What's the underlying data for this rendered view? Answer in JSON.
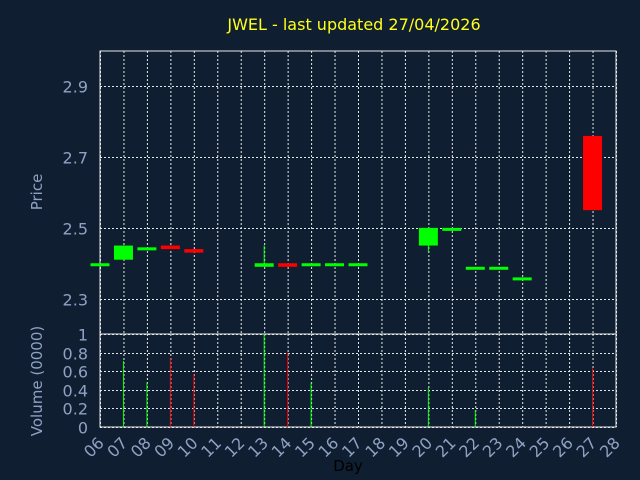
{
  "title": "JWEL - last updated 27/04/2026",
  "chart_data": [
    {
      "type": "candlestick",
      "ylabel": "Price",
      "ylim": [
        2.2,
        3.0
      ],
      "yticks": [
        2.3,
        2.5,
        2.7,
        2.9
      ],
      "ytick_labels": [
        "2.3",
        "2.5",
        "2.7",
        "2.9"
      ],
      "grid": true,
      "up_color": "#00ff00",
      "down_color": "#ff0000",
      "candles": [
        {
          "day": "06",
          "open": 2.4,
          "close": 2.4,
          "high": 2.4,
          "low": 2.4
        },
        {
          "day": "07",
          "open": 2.41,
          "close": 2.45,
          "high": 2.45,
          "low": 2.41
        },
        {
          "day": "08",
          "open": 2.445,
          "close": 2.445,
          "high": 2.445,
          "low": 2.445
        },
        {
          "day": "09",
          "open": 2.45,
          "close": 2.44,
          "high": 2.45,
          "low": 2.44
        },
        {
          "day": "10",
          "open": 2.44,
          "close": 2.43,
          "high": 2.44,
          "low": 2.43
        },
        {
          "day": "13",
          "open": 2.39,
          "close": 2.4,
          "high": 2.45,
          "low": 2.39
        },
        {
          "day": "14",
          "open": 2.4,
          "close": 2.39,
          "high": 2.4,
          "low": 2.39
        },
        {
          "day": "15",
          "open": 2.4,
          "close": 2.4,
          "high": 2.4,
          "low": 2.4
        },
        {
          "day": "16",
          "open": 2.4,
          "close": 2.4,
          "high": 2.4,
          "low": 2.4
        },
        {
          "day": "17",
          "open": 2.4,
          "close": 2.4,
          "high": 2.4,
          "low": 2.4
        },
        {
          "day": "20",
          "open": 2.45,
          "close": 2.5,
          "high": 2.5,
          "low": 2.43
        },
        {
          "day": "21",
          "open": 2.5,
          "close": 2.5,
          "high": 2.5,
          "low": 2.5
        },
        {
          "day": "22",
          "open": 2.39,
          "close": 2.39,
          "high": 2.39,
          "low": 2.39
        },
        {
          "day": "23",
          "open": 2.39,
          "close": 2.39,
          "high": 2.39,
          "low": 2.39
        },
        {
          "day": "24",
          "open": 2.36,
          "close": 2.36,
          "high": 2.36,
          "low": 2.36
        },
        {
          "day": "27",
          "open": 2.76,
          "close": 2.55,
          "high": 2.76,
          "low": 2.55
        }
      ]
    },
    {
      "type": "bar",
      "ylabel": "Volume (0000)",
      "xlabel": "Day",
      "ylim": [
        0,
        1
      ],
      "yticks": [
        0,
        0.2,
        0.4,
        0.6,
        0.8,
        1
      ],
      "ytick_labels": [
        "0",
        "0.2",
        "0.4",
        "0.6",
        "0.8",
        "1"
      ],
      "grid": true,
      "x_ticks": [
        "06",
        "07",
        "08",
        "09",
        "10",
        "11",
        "12",
        "13",
        "14",
        "15",
        "16",
        "17",
        "18",
        "19",
        "20",
        "21",
        "22",
        "23",
        "24",
        "25",
        "26",
        "27",
        "28"
      ],
      "volumes": [
        {
          "day": "07",
          "value": 0.71,
          "direction": "up"
        },
        {
          "day": "08",
          "value": 0.48,
          "direction": "up"
        },
        {
          "day": "09",
          "value": 0.74,
          "direction": "down"
        },
        {
          "day": "10",
          "value": 0.57,
          "direction": "down"
        },
        {
          "day": "13",
          "value": 1.0,
          "direction": "up"
        },
        {
          "day": "14",
          "value": 0.8,
          "direction": "down"
        },
        {
          "day": "15",
          "value": 0.48,
          "direction": "up"
        },
        {
          "day": "20",
          "value": 0.42,
          "direction": "up"
        },
        {
          "day": "22",
          "value": 0.18,
          "direction": "up"
        },
        {
          "day": "27",
          "value": 0.63,
          "direction": "down"
        }
      ]
    }
  ]
}
